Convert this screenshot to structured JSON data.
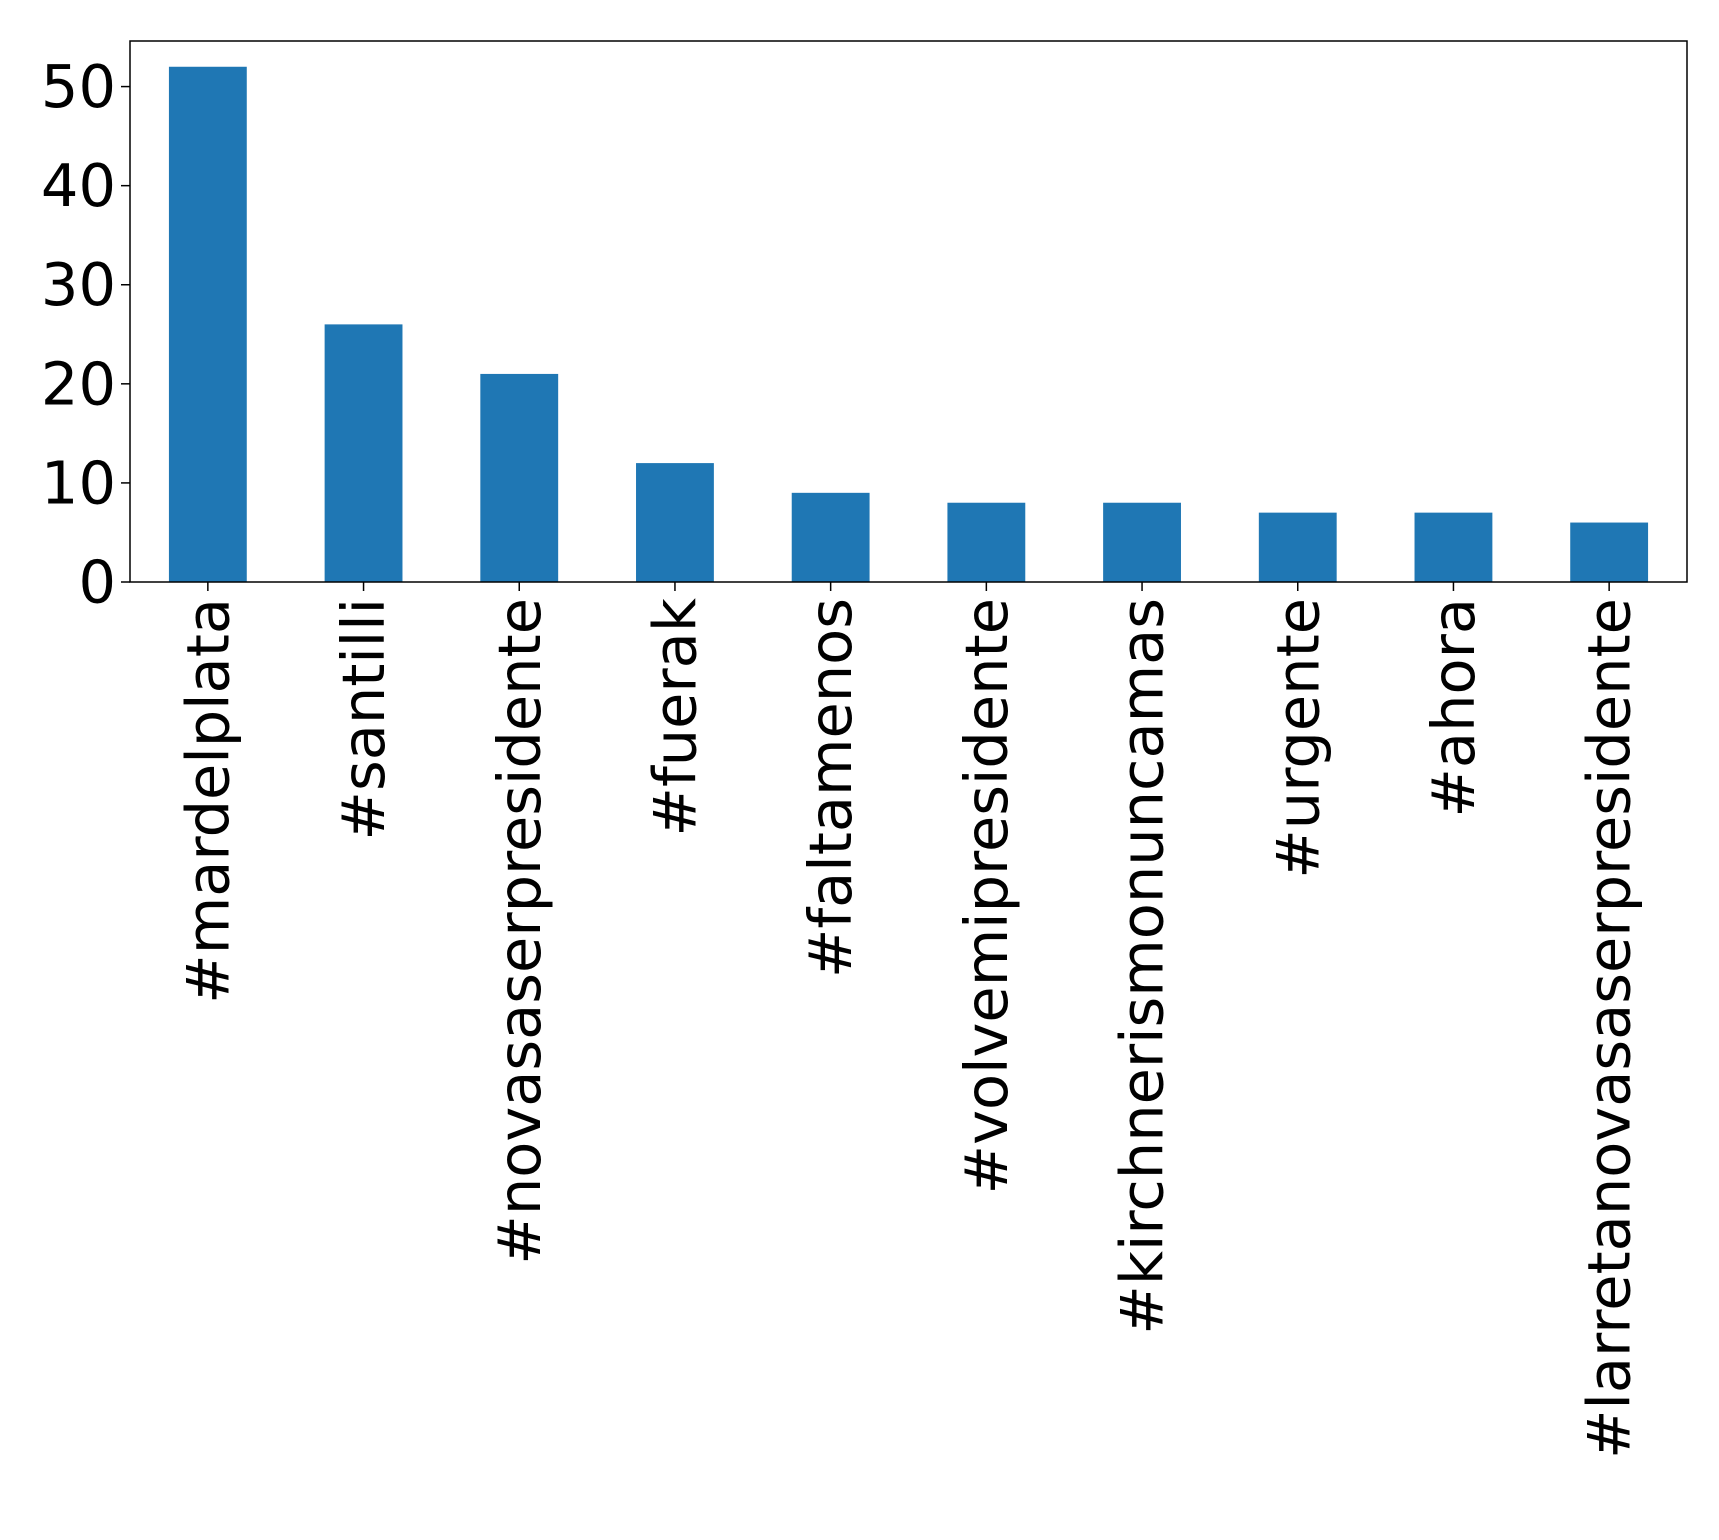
{
  "chart_data": {
    "type": "bar",
    "title": "",
    "xlabel": "",
    "ylabel": "",
    "categories": [
      "#mardelplata",
      "#santilli",
      "#novasaserpresidente",
      "#fuerak",
      "#faltamenos",
      "#volvemipresidente",
      "#kirchnerismonuncamas",
      "#urgente",
      "#ahora",
      "#larretanovasaserpresidente"
    ],
    "values": [
      52,
      26,
      21,
      12,
      9,
      8,
      8,
      7,
      7,
      6
    ],
    "ylim": [
      0,
      54.6
    ],
    "yticks": [
      0,
      10,
      20,
      30,
      40,
      50
    ],
    "bar_color": "#1f77b4",
    "grid": false,
    "legend": "none"
  }
}
